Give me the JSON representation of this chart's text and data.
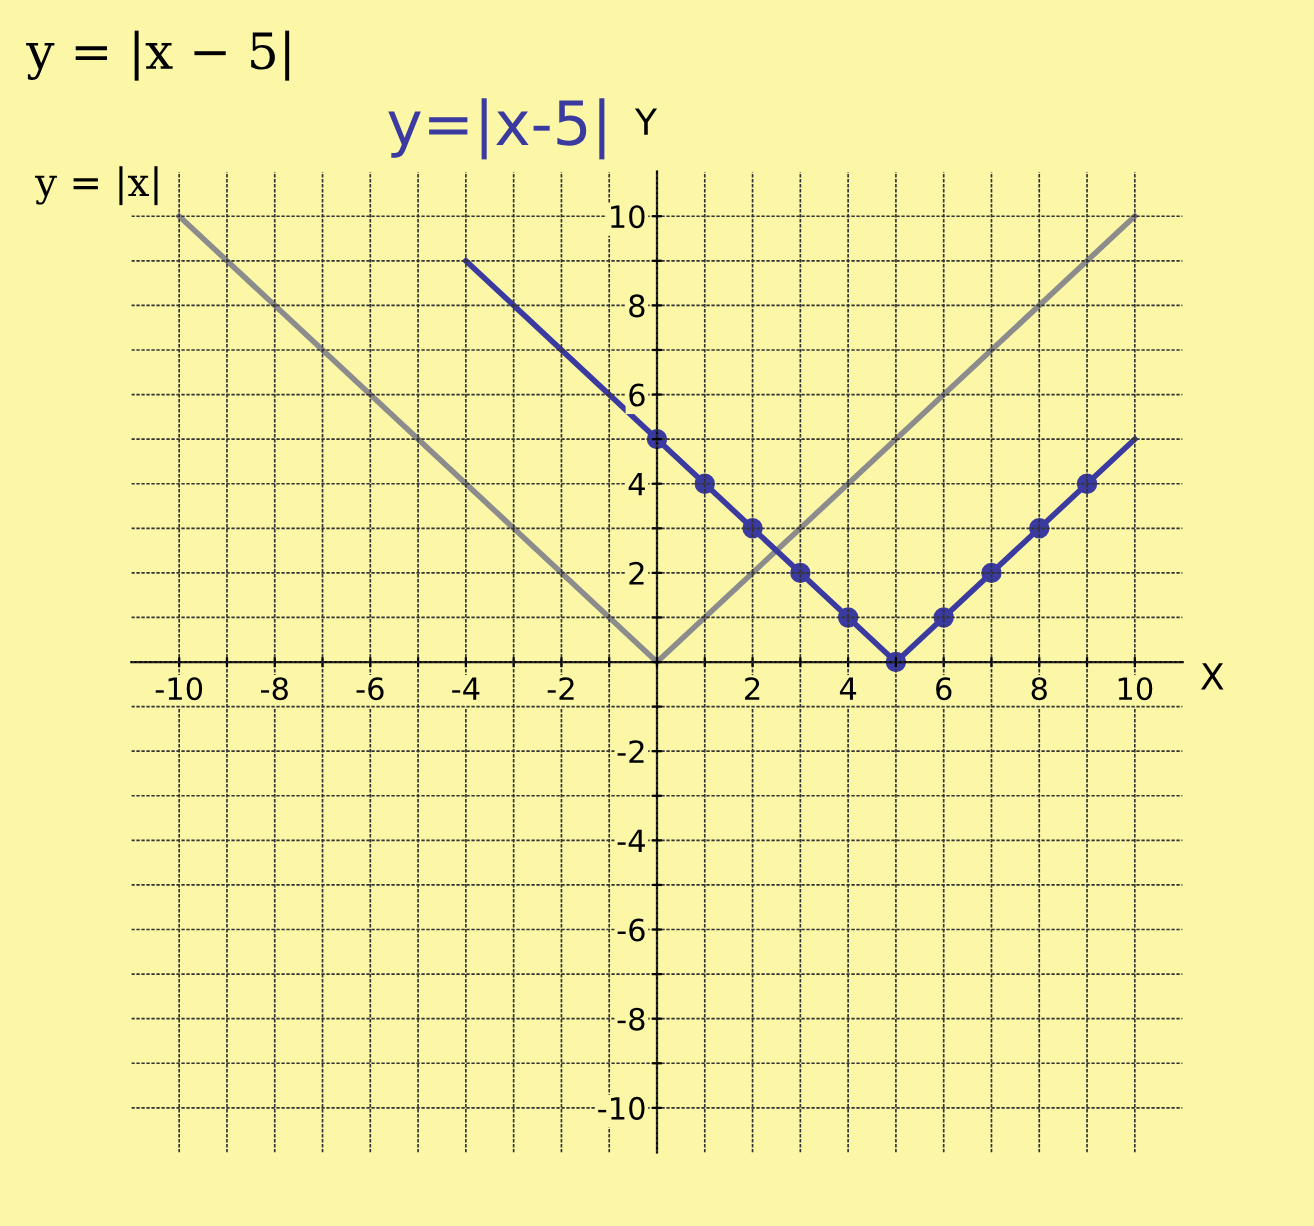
{
  "chart_data": {
    "type": "line",
    "title": "y = |x − 5|",
    "xlabel": "X",
    "ylabel": "Y",
    "annotations": [
      {
        "text": "y = |x|",
        "x": -10,
        "y": 10
      },
      "y=|x-5|"
    ],
    "series": [
      {
        "color": "#8c8c8c",
        "x": [
          -10,
          0,
          10
        ],
        "values": [
          10,
          0,
          10
        ],
        "marker": "none"
      },
      {
        "color": "#3a3aa0",
        "x": [
          -4,
          5,
          10
        ],
        "values": [
          9,
          0,
          5
        ],
        "marker": "none"
      },
      {
        "type": "scatter",
        "color": "#3a3aa0",
        "x": [
          0,
          1,
          2,
          3,
          4,
          5,
          6,
          7,
          8,
          9
        ],
        "values": [
          5,
          4,
          3,
          2,
          1,
          0,
          1,
          2,
          3,
          4
        ],
        "marker": "circle"
      }
    ],
    "xlim": [
      -11,
      11
    ],
    "ylim": [
      -11,
      11
    ],
    "xticks": [
      -10,
      {
        "value": -9,
        "label": null
      },
      -8,
      {
        "value": -7,
        "label": null
      },
      -6,
      {
        "value": -5,
        "label": null
      },
      -4,
      {
        "value": -3,
        "label": null
      },
      -2,
      {
        "value": -1,
        "label": null
      },
      {
        "value": 0,
        "label": null
      },
      {
        "value": 1,
        "label": null
      },
      2,
      {
        "value": 3,
        "label": null
      },
      4,
      {
        "value": 5,
        "label": null
      },
      6,
      {
        "value": 7,
        "label": null
      },
      8,
      {
        "value": 9,
        "label": null
      },
      10
    ],
    "yticks": [
      -10,
      {
        "value": -9,
        "label": null
      },
      -8,
      {
        "value": -7,
        "label": null
      },
      -6,
      {
        "value": -5,
        "label": null
      },
      -4,
      {
        "value": -3,
        "label": null
      },
      -2,
      {
        "value": -1,
        "label": null
      },
      {
        "value": 0,
        "label": null
      },
      {
        "value": 1,
        "label": null
      },
      2,
      {
        "value": 3,
        "label": null
      },
      4,
      {
        "value": 5,
        "label": null
      },
      6,
      {
        "value": 7,
        "label": null
      },
      8,
      {
        "value": 9,
        "label": null
      },
      10
    ],
    "grid": true
  }
}
